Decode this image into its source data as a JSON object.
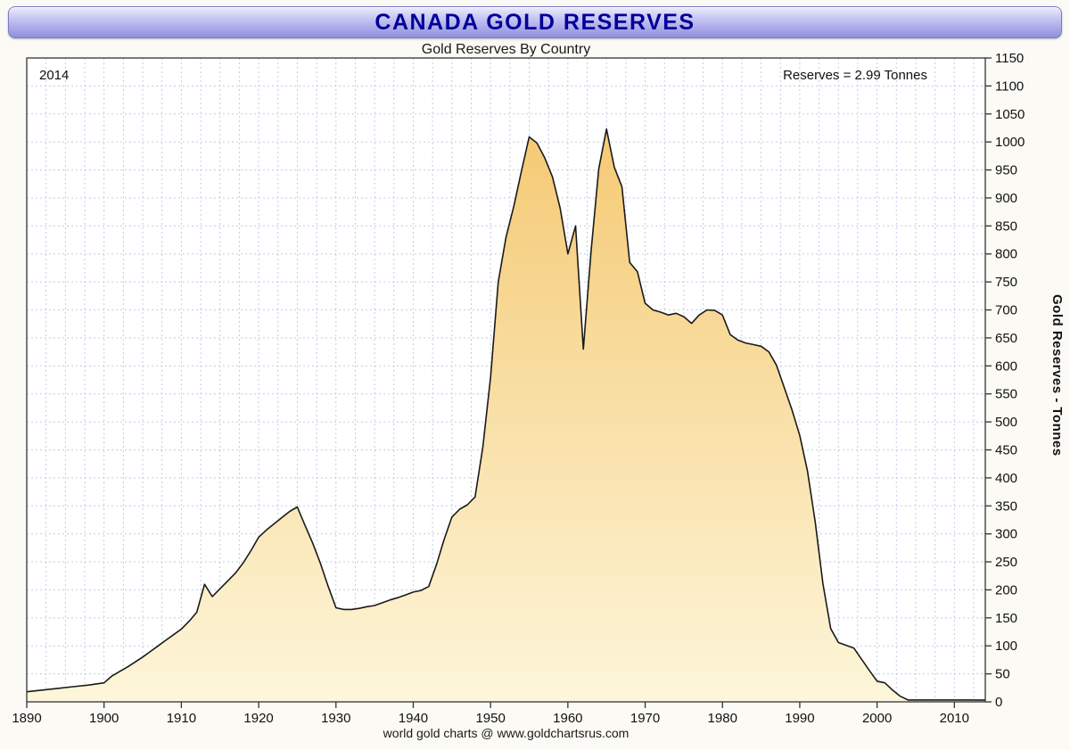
{
  "banner": {
    "title": "CANADA GOLD RESERVES"
  },
  "chart": {
    "subtitle": "Gold Reserves By Country",
    "year_annotation": "2014",
    "reserves_annotation": "Reserves = 2.99 Tonnes",
    "y_axis_title": "Gold Reserves - Tonnes",
    "footer": "world gold charts @ www.goldchartsrus.com"
  },
  "chart_data": {
    "type": "area",
    "title": "Gold Reserves By Country",
    "xlabel": "",
    "ylabel": "Gold Reserves - Tonnes",
    "xlim": [
      1890,
      2014
    ],
    "ylim": [
      0,
      1150
    ],
    "x_ticks": [
      1890,
      1900,
      1910,
      1920,
      1930,
      1940,
      1950,
      1960,
      1970,
      1980,
      1990,
      2000,
      2010
    ],
    "y_ticks": [
      0,
      50,
      100,
      150,
      200,
      250,
      300,
      350,
      400,
      450,
      500,
      550,
      600,
      650,
      700,
      750,
      800,
      850,
      900,
      950,
      1000,
      1050,
      1100,
      1150
    ],
    "grid": {
      "x_step": 2.5,
      "y_step": 50,
      "color": "#bfcde9"
    },
    "colors": {
      "fill_top": "#f4c468",
      "fill_bottom": "#fdf6da",
      "line": "#1a1a1a",
      "frame": "#333333"
    },
    "annotations": [
      "2014",
      "Reserves = 2.99 Tonnes"
    ],
    "points": [
      [
        1890,
        18
      ],
      [
        1892,
        21
      ],
      [
        1894,
        24
      ],
      [
        1896,
        27
      ],
      [
        1898,
        30
      ],
      [
        1900,
        34
      ],
      [
        1901,
        46
      ],
      [
        1902,
        54
      ],
      [
        1903,
        62
      ],
      [
        1904,
        71
      ],
      [
        1905,
        80
      ],
      [
        1906,
        90
      ],
      [
        1907,
        100
      ],
      [
        1908,
        110
      ],
      [
        1909,
        120
      ],
      [
        1910,
        130
      ],
      [
        1911,
        144
      ],
      [
        1912,
        160
      ],
      [
        1913,
        210
      ],
      [
        1914,
        188
      ],
      [
        1915,
        202
      ],
      [
        1916,
        216
      ],
      [
        1917,
        230
      ],
      [
        1918,
        248
      ],
      [
        1919,
        270
      ],
      [
        1920,
        294
      ],
      [
        1921,
        307
      ],
      [
        1922,
        318
      ],
      [
        1923,
        329
      ],
      [
        1924,
        340
      ],
      [
        1925,
        348
      ],
      [
        1926,
        315
      ],
      [
        1927,
        283
      ],
      [
        1928,
        247
      ],
      [
        1929,
        206
      ],
      [
        1930,
        168
      ],
      [
        1931,
        165
      ],
      [
        1932,
        165
      ],
      [
        1933,
        167
      ],
      [
        1934,
        170
      ],
      [
        1935,
        172
      ],
      [
        1936,
        177
      ],
      [
        1937,
        182
      ],
      [
        1938,
        186
      ],
      [
        1939,
        191
      ],
      [
        1940,
        196
      ],
      [
        1941,
        199
      ],
      [
        1942,
        206
      ],
      [
        1943,
        245
      ],
      [
        1944,
        290
      ],
      [
        1945,
        330
      ],
      [
        1946,
        344
      ],
      [
        1947,
        352
      ],
      [
        1948,
        366
      ],
      [
        1949,
        455
      ],
      [
        1950,
        580
      ],
      [
        1951,
        750
      ],
      [
        1952,
        830
      ],
      [
        1953,
        885
      ],
      [
        1954,
        948
      ],
      [
        1955,
        1009
      ],
      [
        1956,
        998
      ],
      [
        1957,
        972
      ],
      [
        1958,
        938
      ],
      [
        1959,
        882
      ],
      [
        1960,
        800
      ],
      [
        1961,
        850
      ],
      [
        1962,
        630
      ],
      [
        1963,
        805
      ],
      [
        1964,
        952
      ],
      [
        1965,
        1023
      ],
      [
        1966,
        955
      ],
      [
        1967,
        920
      ],
      [
        1968,
        785
      ],
      [
        1969,
        768
      ],
      [
        1970,
        712
      ],
      [
        1971,
        700
      ],
      [
        1972,
        696
      ],
      [
        1973,
        691
      ],
      [
        1974,
        694
      ],
      [
        1975,
        688
      ],
      [
        1976,
        676
      ],
      [
        1977,
        691
      ],
      [
        1978,
        700
      ],
      [
        1979,
        699
      ],
      [
        1980,
        691
      ],
      [
        1981,
        656
      ],
      [
        1982,
        646
      ],
      [
        1983,
        641
      ],
      [
        1984,
        638
      ],
      [
        1985,
        635
      ],
      [
        1986,
        625
      ],
      [
        1987,
        601
      ],
      [
        1988,
        561
      ],
      [
        1989,
        521
      ],
      [
        1990,
        476
      ],
      [
        1991,
        412
      ],
      [
        1992,
        321
      ],
      [
        1993,
        211
      ],
      [
        1994,
        131
      ],
      [
        1995,
        106
      ],
      [
        1996,
        101
      ],
      [
        1997,
        96
      ],
      [
        1998,
        76
      ],
      [
        1999,
        56
      ],
      [
        2000,
        37
      ],
      [
        2001,
        34
      ],
      [
        2002,
        21
      ],
      [
        2003,
        10
      ],
      [
        2004,
        3.4
      ],
      [
        2006,
        3.4
      ],
      [
        2008,
        3.4
      ],
      [
        2010,
        3.4
      ],
      [
        2012,
        3.4
      ],
      [
        2014,
        2.99
      ]
    ]
  }
}
